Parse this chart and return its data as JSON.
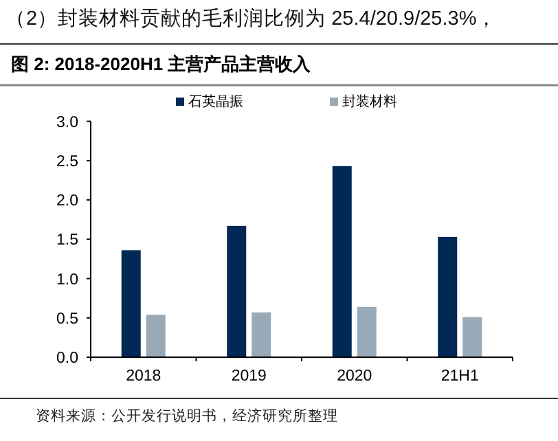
{
  "chart_data": {
    "type": "bar",
    "title": "图 2: 2018-2020H1 主营产品主营收入",
    "categories": [
      "2018",
      "2019",
      "2020",
      "21H1"
    ],
    "series": [
      {
        "name": "石英晶振",
        "color": "#002855",
        "values": [
          1.36,
          1.67,
          2.43,
          1.53
        ]
      },
      {
        "name": "封装材料",
        "color": "#98a9b8",
        "values": [
          0.54,
          0.57,
          0.64,
          0.51
        ]
      }
    ],
    "ylim": [
      0,
      3
    ],
    "yticks": [
      {
        "value": 0,
        "label": "0.0"
      },
      {
        "value": 0.5,
        "label": "0.5"
      },
      {
        "value": 1,
        "label": "1.0"
      },
      {
        "value": 1.5,
        "label": "1.5"
      },
      {
        "value": 2,
        "label": "2.0"
      },
      {
        "value": 2.5,
        "label": "2.5"
      },
      {
        "value": 3,
        "label": "3.0"
      }
    ],
    "legend": "top",
    "grid": false,
    "annotations": [
      "（2）封装材料贡献的毛利润比例为 25.4/20.9/25.3%，",
      "资料来源：公开发行说明书，经济研究所整理"
    ]
  }
}
